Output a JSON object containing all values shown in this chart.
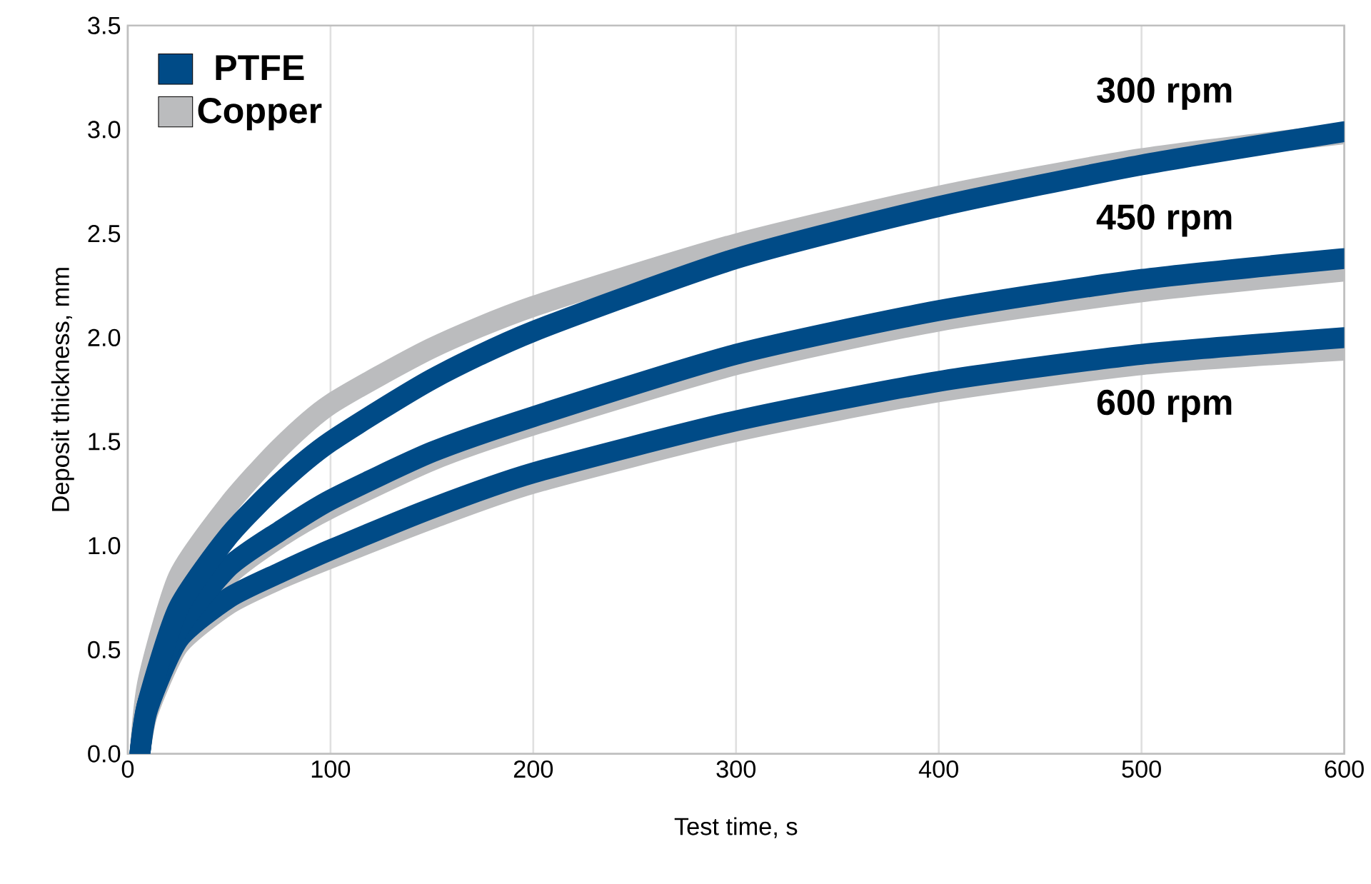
{
  "chart_data": {
    "type": "line",
    "xlabel": "Test time, s",
    "ylabel": "Deposit thickness, mm",
    "xlim": [
      0,
      600
    ],
    "ylim": [
      0,
      3.5
    ],
    "xticks": [
      0,
      100,
      200,
      300,
      400,
      500,
      600
    ],
    "yticks": [
      {
        "value": 0,
        "label": "0.0"
      },
      {
        "value": 0.5,
        "label": "0.5"
      },
      {
        "value": 1,
        "label": "1.0"
      },
      {
        "value": 1.5,
        "label": "1.5"
      },
      {
        "value": 2,
        "label": "2.0"
      },
      {
        "value": 2.5,
        "label": "2.5"
      },
      {
        "value": 3,
        "label": "3.0"
      },
      {
        "value": 3.5,
        "label": "3.5"
      }
    ],
    "grid": "x",
    "legend": "top left",
    "marker": "none",
    "line_style": "solid",
    "x": [
      6,
      10,
      25,
      50,
      75,
      100,
      150,
      200,
      300,
      400,
      500,
      600
    ],
    "series": [
      {
        "name": "PTFE",
        "color": "#004b87",
        "values": [
          0,
          0.25,
          0.7,
          1.05,
          1.3,
          1.5,
          1.8,
          2.03,
          2.38,
          2.63,
          2.83,
          2.99
        ]
      },
      {
        "color": "#004b87",
        "values": [
          0,
          0.25,
          0.6,
          0.9,
          1.07,
          1.22,
          1.45,
          1.62,
          1.92,
          2.13,
          2.28,
          2.38
        ]
      },
      {
        "color": "#004b87",
        "values": [
          0,
          0.22,
          0.55,
          0.75,
          0.87,
          0.98,
          1.18,
          1.35,
          1.6,
          1.79,
          1.92,
          2.0
        ]
      },
      {
        "name": "Copper",
        "color": "#bbbcbe",
        "values": [
          0,
          0.35,
          0.85,
          1.2,
          1.47,
          1.68,
          1.95,
          2.15,
          2.45,
          2.68,
          2.86,
          2.98
        ]
      },
      {
        "color": "#bbbcbe",
        "values": [
          0,
          0.22,
          0.57,
          0.86,
          1.04,
          1.18,
          1.41,
          1.58,
          1.87,
          2.08,
          2.22,
          2.32
        ]
      },
      {
        "color": "#bbbcbe",
        "values": [
          0,
          0.2,
          0.52,
          0.72,
          0.84,
          0.94,
          1.13,
          1.3,
          1.55,
          1.74,
          1.87,
          1.94
        ]
      }
    ],
    "annotations": [
      "300 rpm",
      "450 rpm",
      "600 rpm"
    ]
  }
}
